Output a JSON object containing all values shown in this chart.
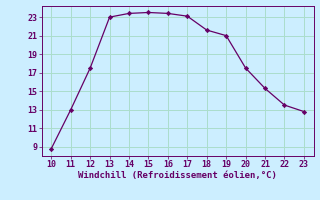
{
  "x": [
    10,
    11,
    12,
    13,
    14,
    15,
    16,
    17,
    18,
    19,
    20,
    21,
    22,
    23
  ],
  "y": [
    8.8,
    13.0,
    17.5,
    23.0,
    23.4,
    23.5,
    23.4,
    23.1,
    21.6,
    21.0,
    17.5,
    15.3,
    13.5,
    12.8
  ],
  "line_color": "#660066",
  "marker": "D",
  "marker_size": 2.2,
  "bg_color": "#cceeff",
  "grid_color": "#aaddcc",
  "xlabel": "Windchill (Refroidissement éolien,°C)",
  "xlabel_color": "#660066",
  "tick_color": "#660066",
  "spine_color": "#660066",
  "xlim": [
    9.5,
    23.5
  ],
  "ylim": [
    8.0,
    24.2
  ],
  "xticks": [
    10,
    11,
    12,
    13,
    14,
    15,
    16,
    17,
    18,
    19,
    20,
    21,
    22,
    23
  ],
  "yticks": [
    9,
    11,
    13,
    15,
    17,
    19,
    21,
    23
  ],
  "tick_fontsize": 6.0,
  "xlabel_fontsize": 6.5,
  "linewidth": 0.9
}
